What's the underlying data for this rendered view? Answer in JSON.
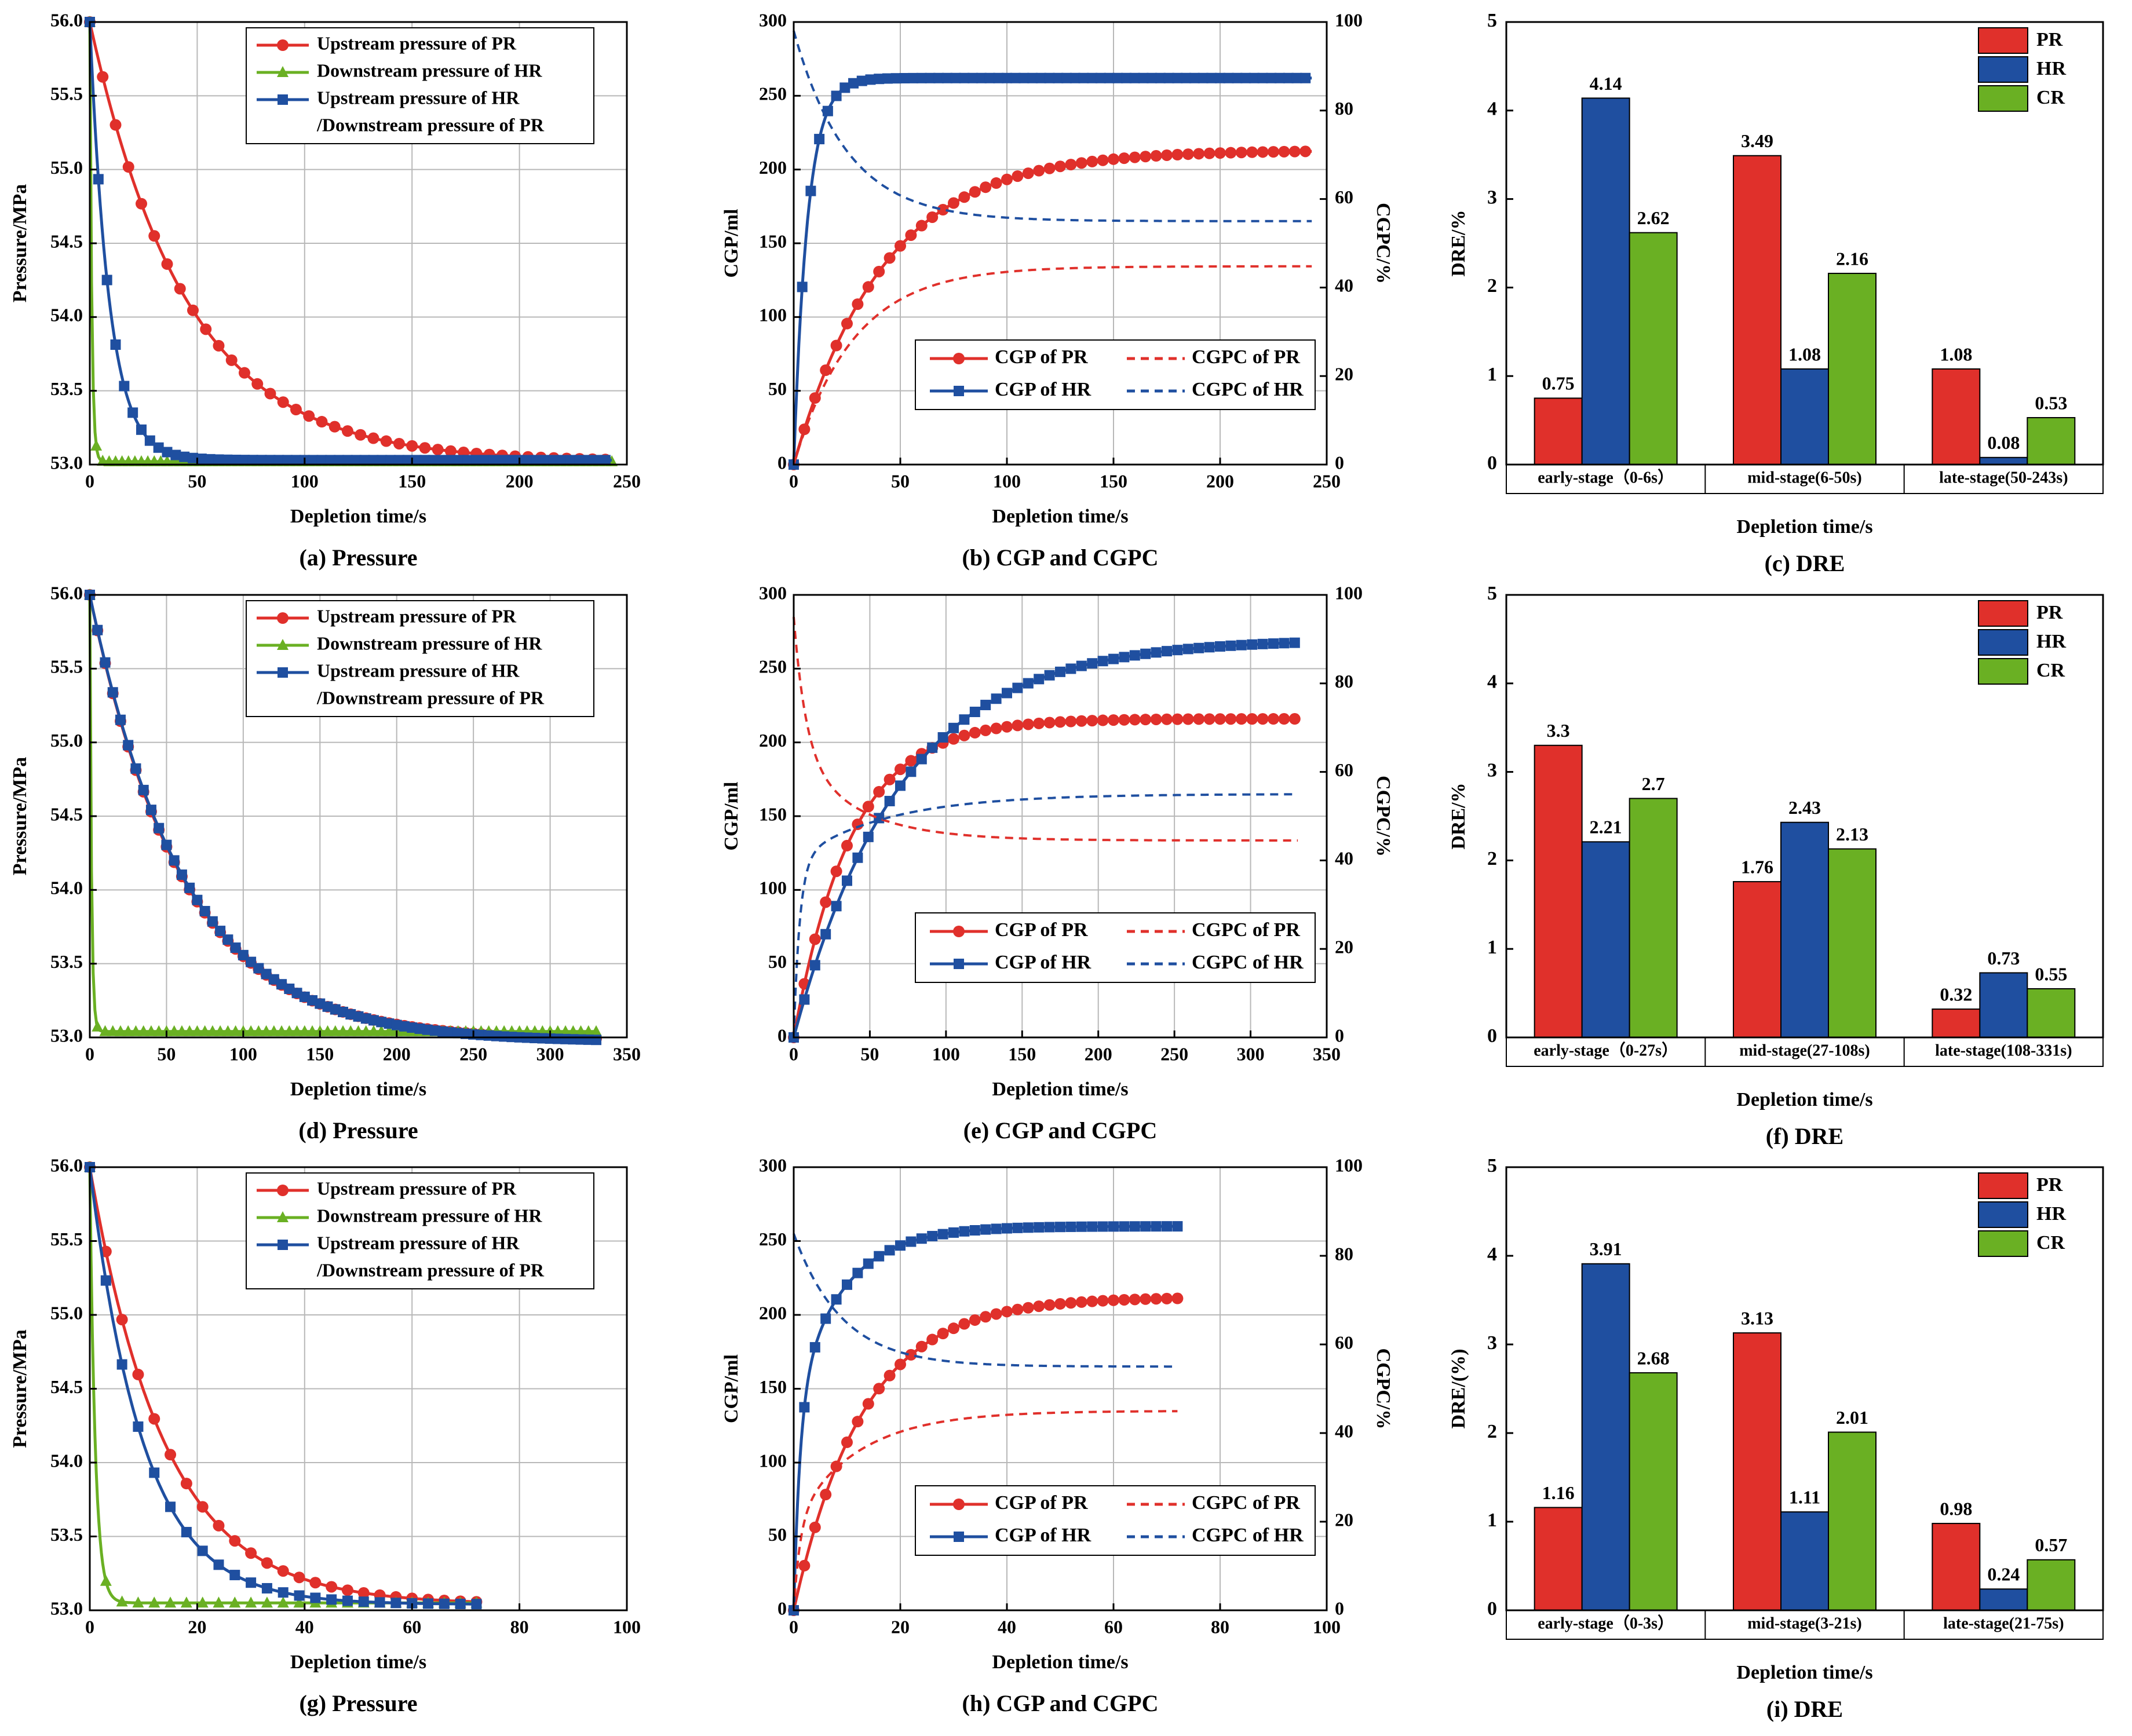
{
  "colors": {
    "pr": "#e0302b",
    "hr": "#1f4fa0",
    "cr": "#6ab023",
    "grid": "#b8b8b8",
    "axis": "#000000"
  },
  "chart_data": [
    {
      "id": "a",
      "type": "line",
      "caption": "(a) Pressure",
      "xlabel": "Depletion time/s",
      "ylabel": "Pressure/MPa",
      "xlim": [
        0,
        250
      ],
      "xticks": [
        0,
        50,
        100,
        150,
        200,
        250
      ],
      "ylim": [
        53.0,
        56.0
      ],
      "yticks": [
        "53.0",
        "53.5",
        "54.0",
        "54.5",
        "55.0",
        "55.5",
        "56.0"
      ],
      "legend": [
        "Upstream pressure of PR",
        "Downstream pressure of HR",
        "Upstream pressure of HR",
        "/Downstream pressure of PR"
      ],
      "series": [
        {
          "name": "Upstream pressure of PR",
          "color": "pr",
          "marker": "circle",
          "model": {
            "kind": "exp",
            "start": 56.0,
            "end": 53.02,
            "tau": 45
          },
          "x_end": 243,
          "dx": 6
        },
        {
          "name": "Downstream pressure of HR",
          "color": "cr",
          "marker": "triangle",
          "model": {
            "kind": "exp",
            "start": 56.0,
            "end": 53.02,
            "tau": 0.9
          },
          "x_end": 243,
          "dx": 3
        },
        {
          "name": "Upstream pressure of HR /Downstream pressure of PR",
          "color": "hr",
          "marker": "square",
          "model": {
            "kind": "exp",
            "start": 56.0,
            "end": 53.03,
            "tau": 9
          },
          "x_end": 243,
          "dx": 4
        }
      ]
    },
    {
      "id": "b",
      "type": "line",
      "caption": "(b) CGP and CGPC",
      "xlabel": "Depletion time/s",
      "ylabel": "CGP/ml",
      "y2label": "CGPC/%",
      "xlim": [
        0,
        250
      ],
      "xticks": [
        0,
        50,
        100,
        150,
        200,
        250
      ],
      "ylim": [
        0,
        300
      ],
      "yticks": [
        0,
        50,
        100,
        150,
        200,
        250,
        300
      ],
      "y2lim": [
        0,
        100
      ],
      "y2ticks": [
        0,
        20,
        40,
        60,
        80,
        100
      ],
      "legend": [
        "CGP of PR",
        "CGPC of PR",
        "CGP of HR",
        "CGPC of HR"
      ],
      "series": [
        {
          "name": "CGP of PR",
          "color": "pr",
          "marker": "circle",
          "axis": "y",
          "model": {
            "kind": "rise",
            "end": 213,
            "tau": 42
          },
          "x_end": 243,
          "dx": 5
        },
        {
          "name": "CGP of HR",
          "color": "hr",
          "marker": "square",
          "axis": "y",
          "model": {
            "kind": "rise",
            "end": 262,
            "tau": 6.5
          },
          "x_end": 243,
          "dx": 4
        },
        {
          "name": "CGPC of PR",
          "color": "pr",
          "dash": true,
          "axis": "y2",
          "model": {
            "kind": "rise",
            "end": 44.8,
            "tau": 28,
            "floor": 0
          },
          "x_end": 243
        },
        {
          "name": "CGPC of HR",
          "color": "hr",
          "dash": true,
          "axis": "y2",
          "model": {
            "kind": "decay",
            "start": 98,
            "end": 55,
            "tau": 25
          },
          "x_end": 243
        }
      ]
    },
    {
      "id": "c",
      "type": "bar",
      "caption": "(c) DRE",
      "xlabel": "Depletion time/s",
      "ylabel": "DRE/%",
      "ylim": [
        0,
        5
      ],
      "yticks": [
        0,
        1,
        2,
        3,
        4,
        5
      ],
      "categories": [
        "early-stage（0-6s）",
        "mid-stage(6-50s)",
        "late-stage(50-243s)"
      ],
      "series": [
        {
          "name": "PR",
          "color": "pr",
          "values": [
            0.75,
            3.49,
            1.08
          ]
        },
        {
          "name": "HR",
          "color": "hr",
          "values": [
            4.14,
            1.08,
            0.08
          ]
        },
        {
          "name": "CR",
          "color": "cr",
          "values": [
            2.62,
            2.16,
            0.53
          ]
        }
      ],
      "labels": [
        [
          "0.75",
          "3.49",
          "1.08"
        ],
        [
          "4.14",
          "1.08",
          "0.08"
        ],
        [
          "2.62",
          "2.16",
          "0.53"
        ]
      ]
    },
    {
      "id": "d",
      "type": "line",
      "caption": "(d) Pressure",
      "xlabel": "Depletion time/s",
      "ylabel": "Pressure/MPa",
      "xlim": [
        0,
        350
      ],
      "xticks": [
        0,
        50,
        100,
        150,
        200,
        250,
        300,
        350
      ],
      "ylim": [
        53.0,
        56.0
      ],
      "yticks": [
        "53.0",
        "53.5",
        "54.0",
        "54.5",
        "55.0",
        "55.5",
        "56.0"
      ],
      "legend": [
        "Upstream pressure of PR",
        "Downstream pressure of HR",
        "Upstream pressure of HR",
        "/Downstream pressure of PR"
      ],
      "series": [
        {
          "name": "Upstream pressure of PR",
          "color": "pr",
          "marker": "circle",
          "model": {
            "kind": "exp",
            "start": 56.0,
            "end": 52.98,
            "tau": 60
          },
          "x_end": 331,
          "dx": 5
        },
        {
          "name": "Downstream pressure of HR",
          "color": "cr",
          "marker": "triangle",
          "model": {
            "kind": "exp",
            "start": 56.0,
            "end": 53.04,
            "tau": 1.1
          },
          "x_end": 331,
          "dx": 5
        },
        {
          "name": "Upstream pressure of HR /Downstream pressure of PR",
          "color": "hr",
          "marker": "square",
          "model": {
            "kind": "exp",
            "start": 56.0,
            "end": 52.97,
            "tau": 61
          },
          "x_end": 331,
          "dx": 5
        }
      ]
    },
    {
      "id": "e",
      "type": "line",
      "caption": "(e) CGP and CGPC",
      "xlabel": "Depletion time/s",
      "ylabel": "CGP/ml",
      "y2label": "CGPC/%",
      "xlim": [
        0,
        350
      ],
      "xticks": [
        0,
        50,
        100,
        150,
        200,
        250,
        300,
        350
      ],
      "ylim": [
        0,
        300
      ],
      "yticks": [
        0,
        50,
        100,
        150,
        200,
        250,
        300
      ],
      "y2lim": [
        0,
        100
      ],
      "y2ticks": [
        0,
        20,
        40,
        60,
        80,
        100
      ],
      "legend": [
        "CGP of PR",
        "CGPC of PR",
        "CGP of HR",
        "CGPC of HR"
      ],
      "series": [
        {
          "name": "CGP of PR",
          "color": "pr",
          "marker": "circle",
          "axis": "y",
          "model": {
            "kind": "rise",
            "end": 216,
            "tau": 38
          },
          "x_end": 331,
          "dx": 7
        },
        {
          "name": "CGP of HR",
          "color": "hr",
          "marker": "square",
          "axis": "y",
          "model": {
            "kind": "rise",
            "end": 270,
            "tau": 70
          },
          "x_end": 331,
          "dx": 7
        },
        {
          "name": "CGPC of PR",
          "color": "pr",
          "dash": true,
          "axis": "y2",
          "model": {
            "kind": "decay",
            "start": 95,
            "end": 44.5,
            "tau": 40,
            "fast": 8
          },
          "x_end": 331
        },
        {
          "name": "CGPC of HR",
          "color": "hr",
          "dash": true,
          "axis": "y2",
          "model": {
            "kind": "rise",
            "end": 55,
            "tau": 60,
            "floor": 0,
            "fast": 4,
            "fastAmp": 40
          },
          "x_end": 331
        }
      ]
    },
    {
      "id": "f",
      "type": "bar",
      "caption": "(f) DRE",
      "xlabel": "Depletion time/s",
      "ylabel": "DRE/%",
      "ylim": [
        0,
        5
      ],
      "yticks": [
        0,
        1,
        2,
        3,
        4,
        5
      ],
      "categories": [
        "early-stage（0-27s）",
        "mid-stage(27-108s)",
        "late-stage(108-331s)"
      ],
      "series": [
        {
          "name": "PR",
          "color": "pr",
          "values": [
            3.3,
            1.76,
            0.32
          ]
        },
        {
          "name": "HR",
          "color": "hr",
          "values": [
            2.21,
            2.43,
            0.73
          ]
        },
        {
          "name": "CR",
          "color": "cr",
          "values": [
            2.7,
            2.13,
            0.55
          ]
        }
      ],
      "labels": [
        [
          "3.3",
          "1.76",
          "0.32"
        ],
        [
          "2.21",
          "2.43",
          "0.73"
        ],
        [
          "2.7",
          "2.13",
          "0.55"
        ]
      ]
    },
    {
      "id": "g",
      "type": "line",
      "caption": "(g) Pressure",
      "xlabel": "Depletion time/s",
      "ylabel": "Pressure/MPa",
      "xlim": [
        0,
        100
      ],
      "xticks": [
        0,
        20,
        40,
        60,
        80,
        100
      ],
      "ylim": [
        53.0,
        56.0
      ],
      "yticks": [
        "53.0",
        "53.5",
        "54.0",
        "54.5",
        "55.0",
        "55.5",
        "56.0"
      ],
      "legend": [
        "Upstream pressure of PR",
        "Downstream pressure of HR",
        "Upstream pressure of HR",
        "/Downstream pressure of PR"
      ],
      "series": [
        {
          "name": "Upstream pressure of PR",
          "color": "pr",
          "marker": "circle",
          "model": {
            "kind": "exp",
            "start": 56.0,
            "end": 53.04,
            "tau": 14
          },
          "x_end": 72,
          "dx": 3
        },
        {
          "name": "Downstream pressure of HR",
          "color": "cr",
          "marker": "triangle",
          "model": {
            "kind": "exp",
            "start": 56.0,
            "end": 53.05,
            "tau": 1.0
          },
          "x_end": 72,
          "dx": 3
        },
        {
          "name": "Upstream pressure of HR /Downstream pressure of PR",
          "color": "hr",
          "marker": "square",
          "model": {
            "kind": "exp",
            "start": 56.0,
            "end": 53.04,
            "tau": 10
          },
          "x_end": 72,
          "dx": 3
        }
      ]
    },
    {
      "id": "h",
      "type": "line",
      "caption": "(h) CGP and CGPC",
      "xlabel": "Depletion time/s",
      "ylabel": "CGP/ml",
      "y2label": "CGPC/%",
      "xlim": [
        0,
        100
      ],
      "xticks": [
        0,
        20,
        40,
        60,
        80,
        100
      ],
      "ylim": [
        0,
        300
      ],
      "yticks": [
        0,
        50,
        100,
        150,
        200,
        250,
        300
      ],
      "y2lim": [
        0,
        100
      ],
      "y2ticks": [
        0,
        20,
        40,
        60,
        80,
        100
      ],
      "legend": [
        "CGP of PR",
        "CGPC of PR",
        "CGP of HR",
        "CGPC of HR"
      ],
      "series": [
        {
          "name": "CGP of PR",
          "color": "pr",
          "marker": "circle",
          "axis": "y",
          "model": {
            "kind": "rise",
            "end": 212,
            "tau": 13
          },
          "x_end": 72,
          "dx": 2
        },
        {
          "name": "CGP of HR",
          "color": "hr",
          "marker": "square",
          "axis": "y",
          "model": {
            "kind": "rise",
            "end": 260,
            "tau": 9,
            "fast": 1.2,
            "fastAmp": 140
          },
          "x_end": 72,
          "dx": 2
        },
        {
          "name": "CGPC of PR",
          "color": "pr",
          "dash": true,
          "axis": "y2",
          "model": {
            "kind": "rise",
            "end": 45,
            "tau": 12,
            "floor": 0,
            "fast": 1.2,
            "fastAmp": 20
          },
          "x_end": 72
        },
        {
          "name": "CGPC of HR",
          "color": "hr",
          "dash": true,
          "axis": "y2",
          "model": {
            "kind": "decay",
            "start": 85,
            "end": 55,
            "tau": 9
          },
          "x_end": 72
        }
      ]
    },
    {
      "id": "i",
      "type": "bar",
      "caption": "(i) DRE",
      "xlabel": "Depletion time/s",
      "ylabel": "DRE/(%)",
      "ylim": [
        0,
        5
      ],
      "yticks": [
        0,
        1,
        2,
        3,
        4,
        5
      ],
      "categories": [
        "early-stage（0-3s）",
        "mid-stage(3-21s)",
        "late-stage(21-75s)"
      ],
      "series": [
        {
          "name": "PR",
          "color": "pr",
          "values": [
            1.16,
            3.13,
            0.98
          ]
        },
        {
          "name": "HR",
          "color": "hr",
          "values": [
            3.91,
            1.11,
            0.24
          ]
        },
        {
          "name": "CR",
          "color": "cr",
          "values": [
            2.68,
            2.01,
            0.57
          ]
        }
      ],
      "labels": [
        [
          "1.16",
          "3.13",
          "0.98"
        ],
        [
          "3.91",
          "1.11",
          "0.24"
        ],
        [
          "2.68",
          "2.01",
          "0.57"
        ]
      ]
    }
  ]
}
